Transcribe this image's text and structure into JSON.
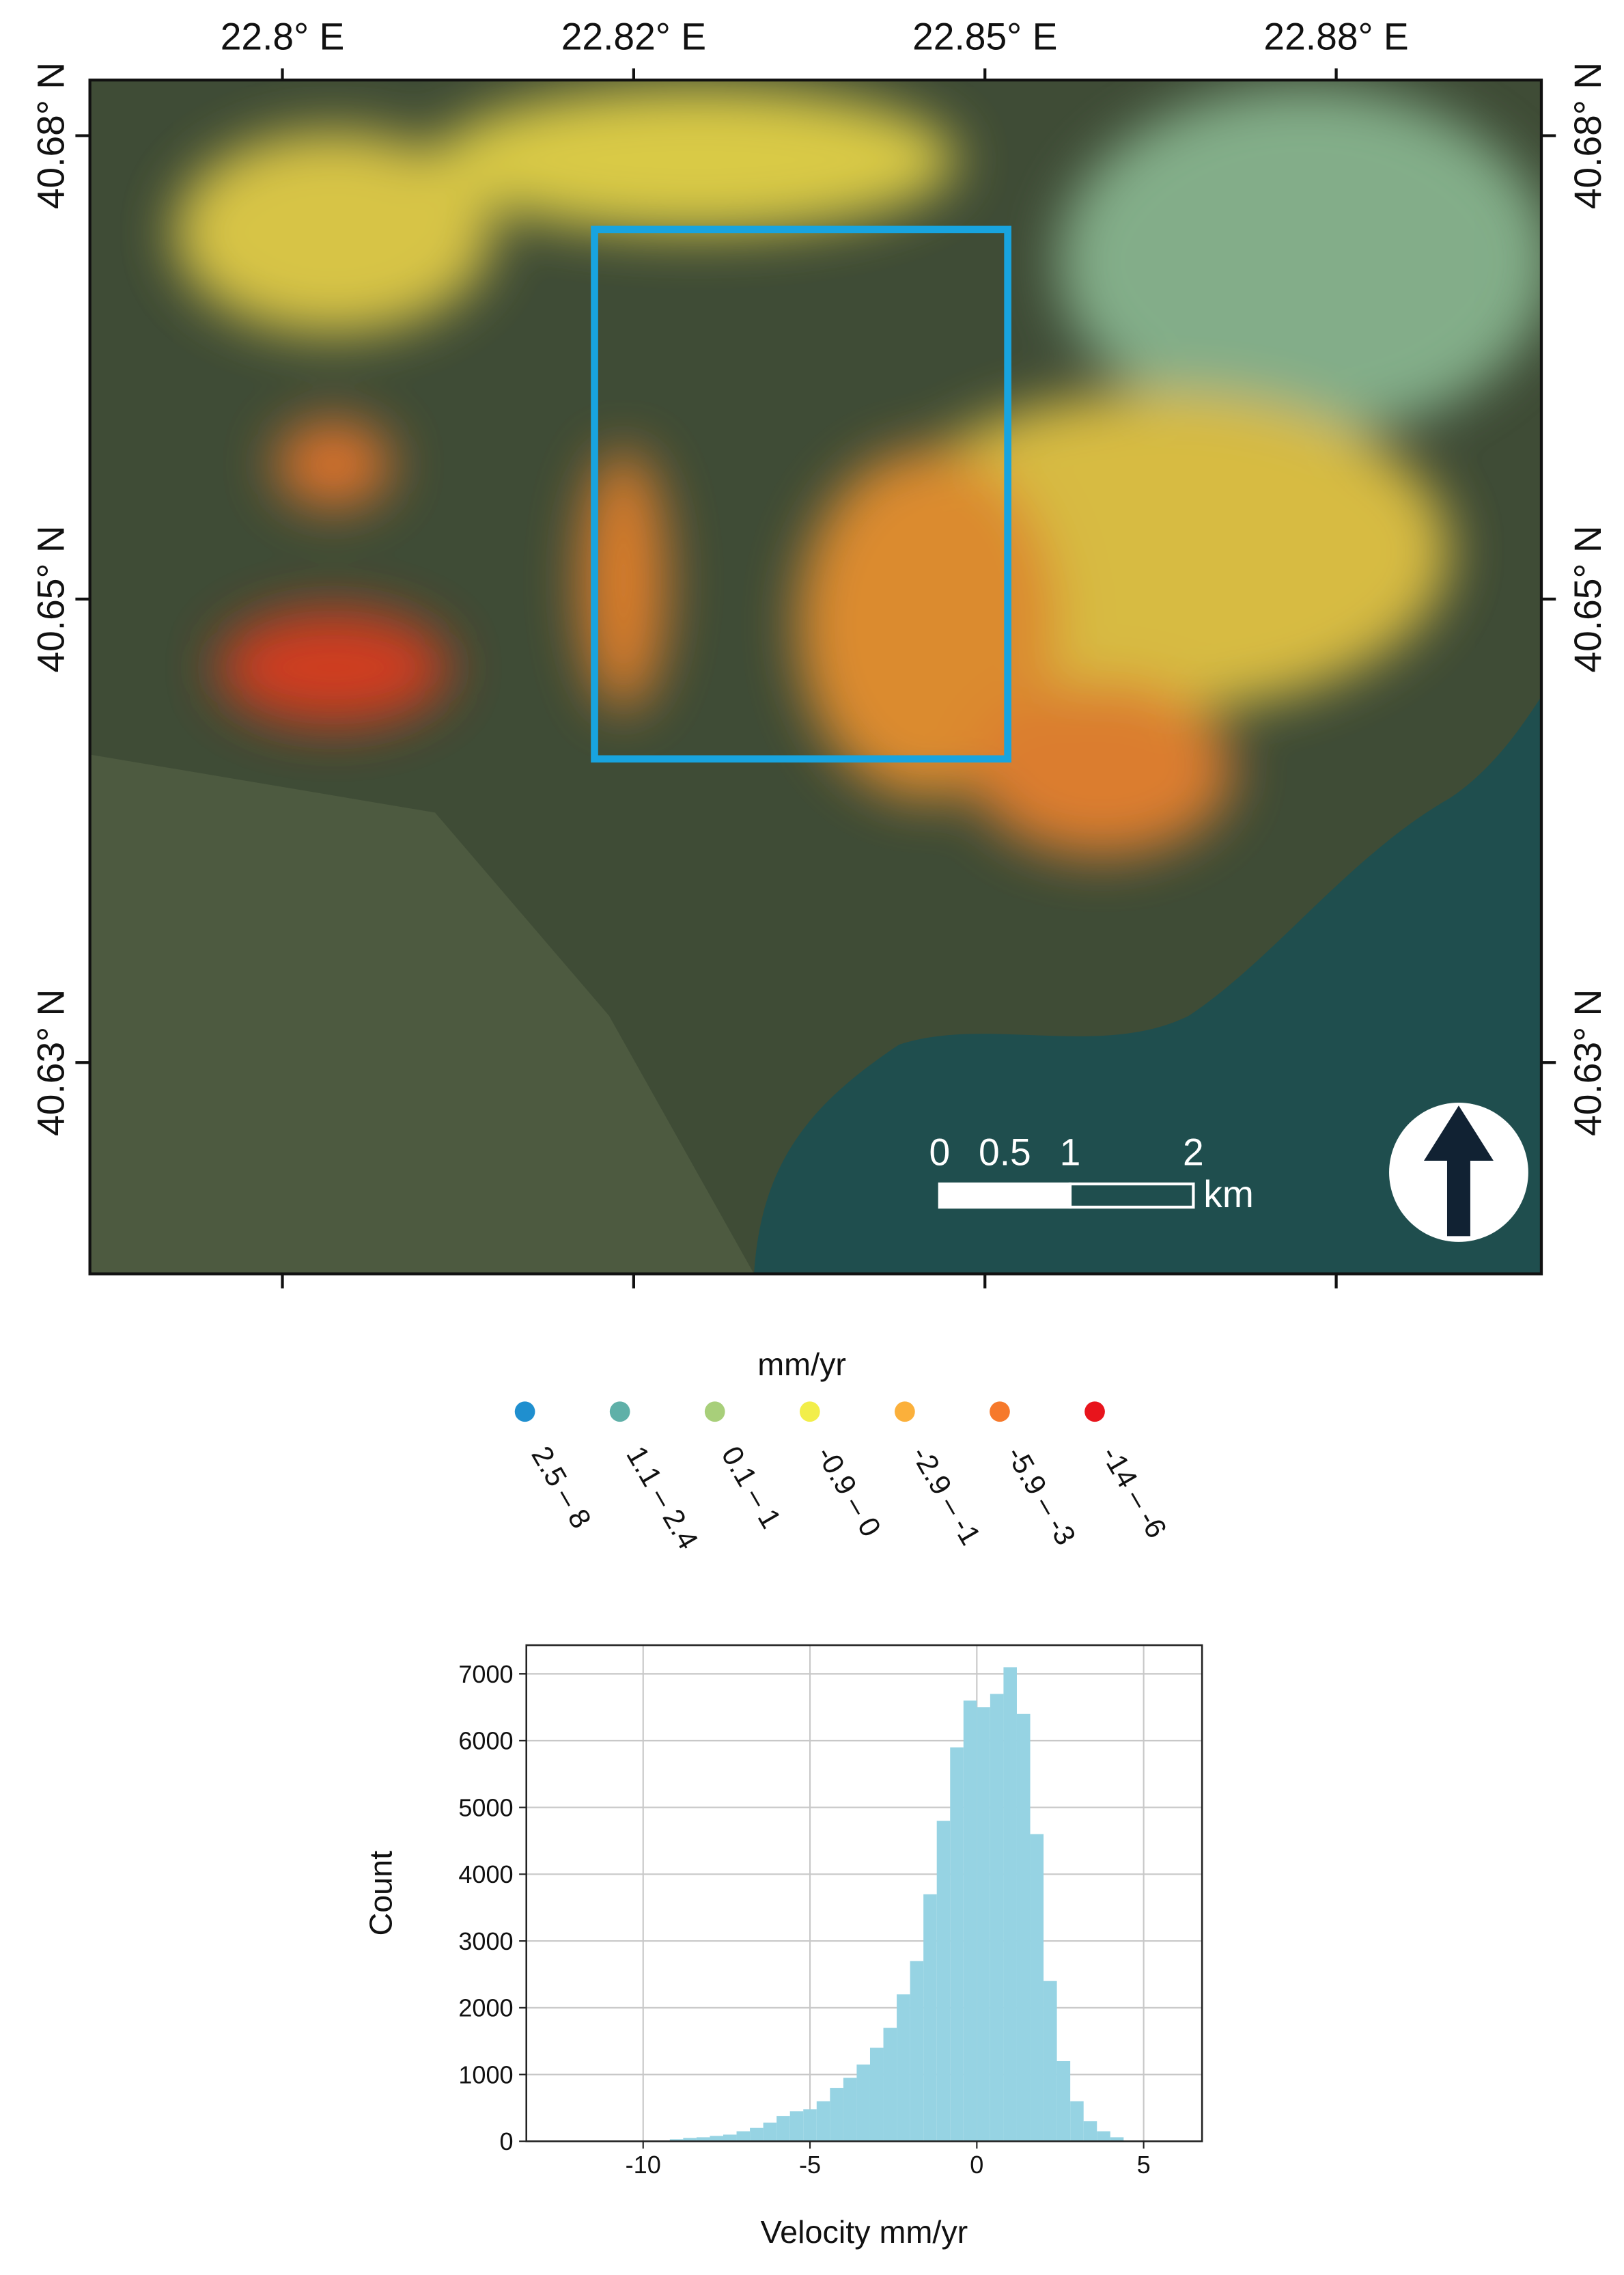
{
  "chart_data": [
    {
      "type": "map",
      "xlim": [
        22.7863,
        22.8896
      ],
      "ylim": [
        40.6186,
        40.683
      ],
      "xticks": [
        {
          "value": 22.8,
          "label": "22.8° E"
        },
        {
          "value": 22.825,
          "label": "22.82° E"
        },
        {
          "value": 22.85,
          "label": "22.85° E"
        },
        {
          "value": 22.875,
          "label": "22.88° E"
        }
      ],
      "yticks": [
        {
          "value": 40.63,
          "label": "40.63° N"
        },
        {
          "value": 40.655,
          "label": "40.65° N"
        },
        {
          "value": 40.68,
          "label": "40.68° N"
        }
      ],
      "legend": {
        "title": "mm/yr",
        "items": [
          {
            "label": "2.5 – 8",
            "color": "#1f8fcf"
          },
          {
            "label": "1.1 – 2.4",
            "color": "#5fb0a8"
          },
          {
            "label": "0.1 – 1",
            "color": "#a8cf7a"
          },
          {
            "label": "-0.9 – 0",
            "color": "#f2ee4a"
          },
          {
            "label": "-2.9 – -1",
            "color": "#fbb03b"
          },
          {
            "label": "-5.9 – -3",
            "color": "#f6792b"
          },
          {
            "label": "-14 – -6",
            "color": "#e8141c"
          }
        ]
      },
      "scale_bar": {
        "labels": [
          "0",
          "0.5",
          "1",
          "2"
        ],
        "unit": "km"
      }
    },
    {
      "type": "histogram",
      "bins": [
        -9.2,
        -8.8,
        -8.4,
        -8.0,
        -7.6,
        -7.2,
        -6.8,
        -6.4,
        -6.0,
        -5.6,
        -5.2,
        -4.8,
        -4.4,
        -4.0,
        -3.6,
        -3.2,
        -2.8,
        -2.4,
        -2.0,
        -1.6,
        -1.2,
        -0.8,
        -0.4,
        0,
        0.4,
        0.8,
        1.2,
        1.6,
        2.0,
        2.4,
        2.8,
        3.2,
        3.6,
        4.0,
        4.4
      ],
      "counts": [
        30,
        50,
        60,
        80,
        100,
        150,
        200,
        280,
        380,
        450,
        480,
        600,
        800,
        950,
        1150,
        1400,
        1700,
        2200,
        2700,
        3700,
        4800,
        5900,
        6600,
        6500,
        6700,
        7100,
        6400,
        4600,
        2400,
        1200,
        600,
        300,
        150,
        60
      ],
      "color": "#96d3e3",
      "xlim": [
        -13.5,
        6.75
      ],
      "ylim": [
        0,
        7430
      ],
      "xticks": [
        -10,
        -5,
        0,
        5
      ],
      "yticks": [
        0,
        1000,
        2000,
        3000,
        4000,
        5000,
        6000,
        7000
      ],
      "xlabel": "Velocity mm/yr",
      "ylabel": "Count",
      "grid": true
    }
  ]
}
